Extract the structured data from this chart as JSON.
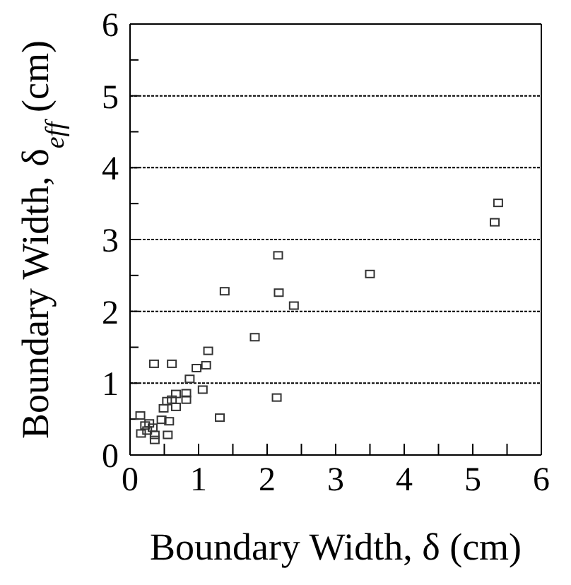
{
  "chart_data": {
    "type": "scatter",
    "xlabel": "Boundary Width, δ (cm)",
    "ylabel": "Boundary Width, δ$_{eff}$ (cm)",
    "x": [
      5.37,
      5.32,
      3.5,
      2.16,
      2.17,
      2.39,
      1.38,
      1.82,
      1.14,
      1.11,
      0.97,
      0.61,
      0.35,
      2.14,
      1.06,
      1.31,
      0.87,
      0.82,
      0.82,
      0.67,
      0.67,
      0.54,
      0.49,
      0.57,
      0.46,
      0.55,
      0.36,
      0.36,
      0.15,
      0.16,
      0.22,
      0.28,
      0.33,
      0.25,
      0.61
    ],
    "values": [
      3.51,
      3.24,
      2.52,
      2.78,
      2.26,
      2.08,
      2.28,
      1.64,
      1.45,
      1.25,
      1.21,
      1.27,
      1.27,
      0.8,
      0.91,
      0.52,
      1.06,
      0.86,
      0.77,
      0.85,
      0.67,
      0.75,
      0.65,
      0.47,
      0.49,
      0.28,
      0.28,
      0.21,
      0.55,
      0.3,
      0.41,
      0.44,
      0.38,
      0.34,
      0.77
    ],
    "color": "#333333",
    "marker": "square",
    "grid": "y",
    "legend": false,
    "xlim": [
      0,
      6
    ],
    "xticks": [
      0,
      {
        "value": 0.5,
        "label": null
      },
      1,
      {
        "value": 1.5,
        "label": null
      },
      2,
      {
        "value": 2.5,
        "label": null
      },
      3,
      {
        "value": 3.5,
        "label": null
      },
      4,
      {
        "value": 4.5,
        "label": null
      },
      5,
      {
        "value": 5.5,
        "label": null
      },
      6
    ],
    "ylim": [
      0,
      6
    ],
    "yticks": [
      0,
      {
        "value": 0.5,
        "label": null
      },
      1,
      {
        "value": 1.5,
        "label": null
      },
      2,
      {
        "value": 2.5,
        "label": null
      },
      3,
      {
        "value": 3.5,
        "label": null
      },
      4,
      {
        "value": 4.5,
        "label": null
      },
      5,
      {
        "value": 5.5,
        "label": null
      },
      6
    ]
  }
}
